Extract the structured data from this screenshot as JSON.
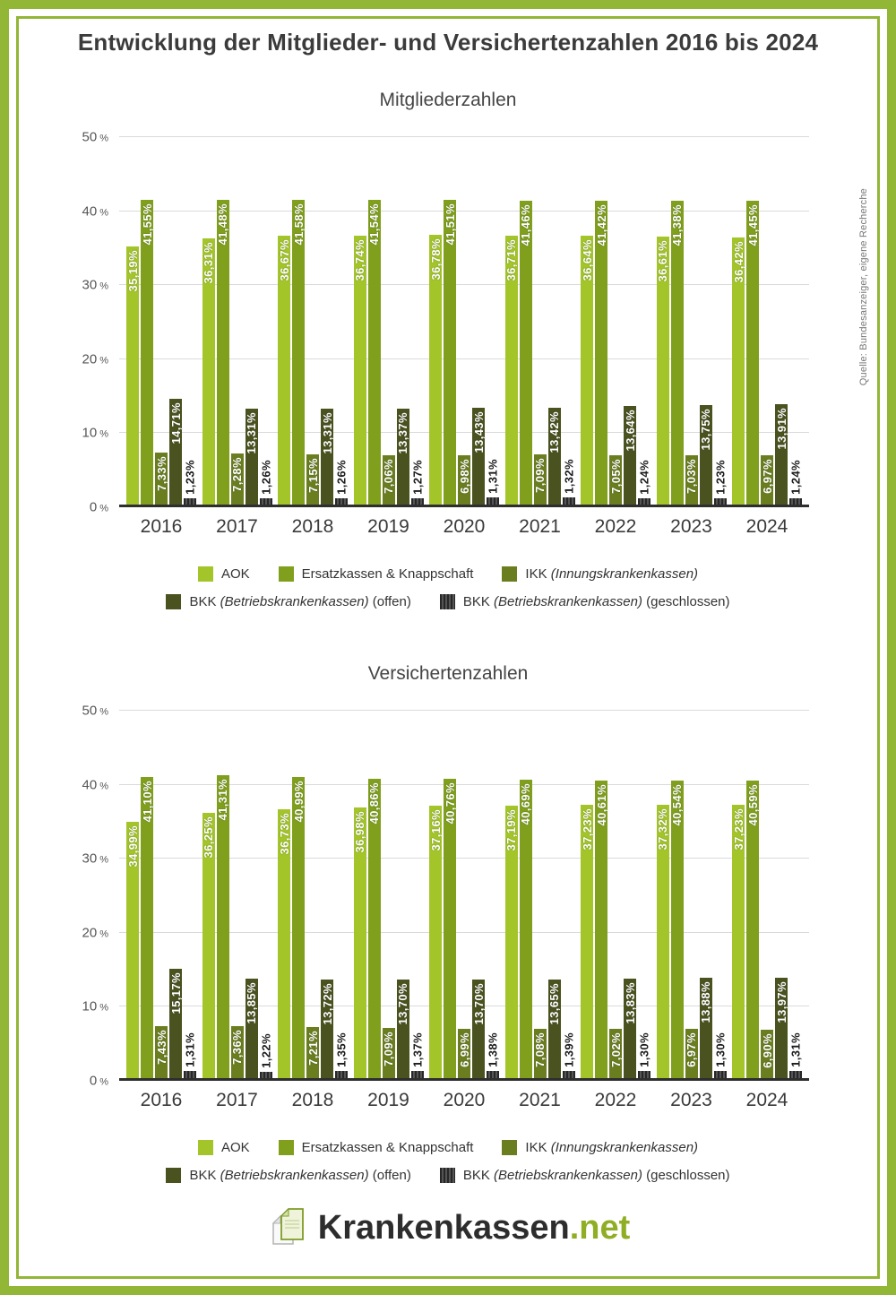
{
  "header": {
    "title": "Entwicklung der Mitglieder- und Versichertenzahlen 2016 bis 2024"
  },
  "source_note": "Quelle: Bundesanzeiger, eigene Recherche",
  "footer": {
    "brand": "Krankenkassen",
    "tld": ".net"
  },
  "colors": {
    "accent_green": "#92b636",
    "aok": "#a3c52a",
    "ersatzkassen": "#7f9f1d",
    "ikk": "#6a7e20",
    "bkk_offen": "#4a521f",
    "bkk_geschlossen": "#2b2b2b"
  },
  "legend": {
    "rows": [
      3,
      2
    ],
    "items": [
      {
        "id": "aok",
        "series": "aok",
        "parts": [
          {
            "text": "AOK",
            "italic": false
          }
        ]
      },
      {
        "id": "ersatzkassen",
        "series": "ersatzkassen",
        "parts": [
          {
            "text": "Ersatzkassen & Knappschaft",
            "italic": false
          }
        ]
      },
      {
        "id": "ikk",
        "series": "ikk",
        "parts": [
          {
            "text": "IKK ",
            "italic": false
          },
          {
            "text": "(Innungskrankenkassen)",
            "italic": true
          }
        ]
      },
      {
        "id": "bkk-offen",
        "series": "bkk-offen",
        "parts": [
          {
            "text": "BKK ",
            "italic": false
          },
          {
            "text": "(Betriebskrankenkassen)",
            "italic": true
          },
          {
            "text": " (offen)",
            "italic": false
          }
        ]
      },
      {
        "id": "bkk-geschlossen",
        "series": "bkk-geschlossen",
        "parts": [
          {
            "text": "BKK ",
            "italic": false
          },
          {
            "text": "(Betriebskrankenkassen)",
            "italic": true
          },
          {
            "text": " (geschlossen)",
            "italic": false
          }
        ]
      }
    ]
  },
  "chart_data": [
    {
      "type": "bar",
      "title": "Mitgliederzahlen",
      "categories": [
        "2016",
        "2017",
        "2018",
        "2019",
        "2020",
        "2021",
        "2022",
        "2023",
        "2024"
      ],
      "ylim": [
        0,
        50
      ],
      "yticks": [
        0,
        10,
        20,
        30,
        40,
        50
      ],
      "ytick_suffix": "%",
      "grid": true,
      "legend_position": "bottom",
      "value_label_format": "de-percent-2dp",
      "series": [
        {
          "id": "aok",
          "name": "AOK",
          "color": "#a3c52a",
          "label_placement": "inside",
          "values": [
            35.19,
            36.31,
            36.67,
            36.74,
            36.78,
            36.71,
            36.64,
            36.61,
            36.42
          ]
        },
        {
          "id": "ersatzkassen",
          "name": "Ersatzkassen & Knappschaft",
          "color": "#7f9f1d",
          "label_placement": "inside",
          "values": [
            41.55,
            41.48,
            41.58,
            41.54,
            41.51,
            41.46,
            41.42,
            41.38,
            41.45
          ]
        },
        {
          "id": "ikk",
          "name": "IKK (Innungskrankenkassen)",
          "color": "#6a7e20",
          "label_placement": "inside",
          "values": [
            7.33,
            7.28,
            7.15,
            7.06,
            6.98,
            7.09,
            7.05,
            7.03,
            6.97
          ]
        },
        {
          "id": "bkk-offen",
          "name": "BKK (Betriebskrankenkassen) (offen)",
          "color": "#4a521f",
          "label_placement": "inside",
          "values": [
            14.71,
            13.31,
            13.31,
            13.37,
            13.43,
            13.42,
            13.64,
            13.75,
            13.91
          ]
        },
        {
          "id": "bkk-geschlossen",
          "name": "BKK (Betriebskrankenkassen) (geschlossen)",
          "color": "#2b2b2b",
          "pattern": "vertical-stripes",
          "stripe_color": "#555555",
          "label_placement": "above",
          "values": [
            1.23,
            1.26,
            1.26,
            1.27,
            1.31,
            1.32,
            1.24,
            1.23,
            1.24
          ]
        }
      ]
    },
    {
      "type": "bar",
      "title": "Versichertenzahlen",
      "categories": [
        "2016",
        "2017",
        "2018",
        "2019",
        "2020",
        "2021",
        "2022",
        "2023",
        "2024"
      ],
      "ylim": [
        0,
        50
      ],
      "yticks": [
        0,
        10,
        20,
        30,
        40,
        50
      ],
      "ytick_suffix": "%",
      "grid": true,
      "legend_position": "bottom",
      "value_label_format": "de-percent-2dp",
      "series": [
        {
          "id": "aok",
          "name": "AOK",
          "color": "#a3c52a",
          "label_placement": "inside",
          "values": [
            34.99,
            36.25,
            36.73,
            36.98,
            37.16,
            37.19,
            37.23,
            37.32,
            37.23
          ]
        },
        {
          "id": "ersatzkassen",
          "name": "Ersatzkassen & Knappschaft",
          "color": "#7f9f1d",
          "label_placement": "inside",
          "values": [
            41.1,
            41.31,
            40.99,
            40.86,
            40.76,
            40.69,
            40.61,
            40.54,
            40.59
          ]
        },
        {
          "id": "ikk",
          "name": "IKK (Innungskrankenkassen)",
          "color": "#6a7e20",
          "label_placement": "inside",
          "values": [
            7.43,
            7.36,
            7.21,
            7.09,
            6.99,
            7.08,
            7.02,
            6.97,
            6.9
          ]
        },
        {
          "id": "bkk-offen",
          "name": "BKK (Betriebskrankenkassen) (offen)",
          "color": "#4a521f",
          "label_placement": "inside",
          "values": [
            15.17,
            13.85,
            13.72,
            13.7,
            13.7,
            13.65,
            13.83,
            13.88,
            13.97
          ]
        },
        {
          "id": "bkk-geschlossen",
          "name": "BKK (Betriebskrankenkassen) (geschlossen)",
          "color": "#2b2b2b",
          "pattern": "vertical-stripes",
          "stripe_color": "#555555",
          "label_placement": "above",
          "values": [
            1.31,
            1.22,
            1.35,
            1.37,
            1.38,
            1.39,
            1.3,
            1.3,
            1.31
          ]
        }
      ]
    }
  ]
}
